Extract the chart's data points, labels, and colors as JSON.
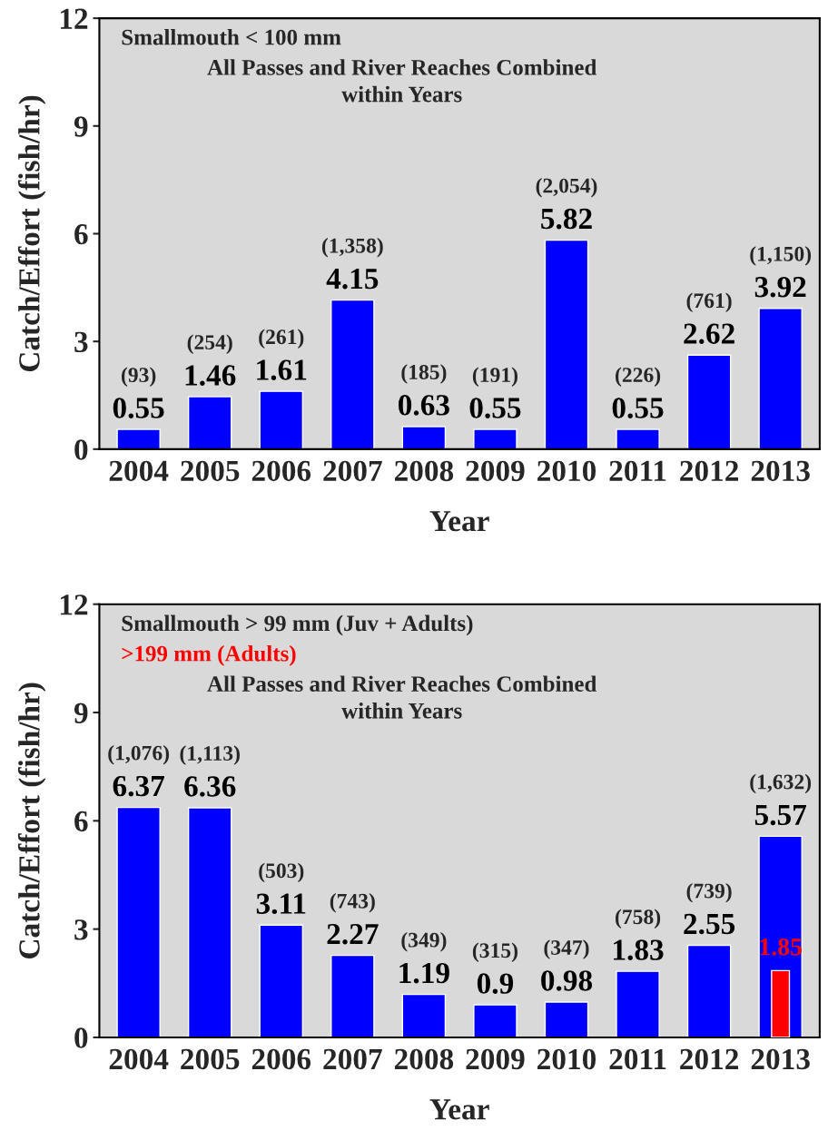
{
  "chart_data": [
    {
      "type": "bar",
      "title": "Smallmouth < 100 mm",
      "subtitle": "All Passes and River Reaches Combined\nwithin Years",
      "xlabel": "Year",
      "ylabel": "Catch/Effort (fish/hr)",
      "categories": [
        "2004",
        "2005",
        "2006",
        "2007",
        "2008",
        "2009",
        "2010",
        "2011",
        "2012",
        "2013"
      ],
      "series": [
        {
          "color": "#0000ff",
          "values": [
            0.55,
            1.46,
            1.61,
            4.15,
            0.63,
            0.55,
            5.82,
            0.55,
            2.62,
            3.92
          ],
          "value_labels": [
            "0.55",
            "1.46",
            "1.61",
            "4.15",
            "0.63",
            "0.55",
            "5.82",
            "0.55",
            "2.62",
            "3.92"
          ]
        }
      ],
      "annotations": [
        {
          "text": "(93)",
          "x": "2004",
          "y": 0.55
        },
        {
          "text": "(254)",
          "x": "2005",
          "y": 1.46
        },
        {
          "text": "(261)",
          "x": "2006",
          "y": 1.61
        },
        {
          "text": "(1,358)",
          "x": "2007",
          "y": 4.15
        },
        {
          "text": "(185)",
          "x": "2008",
          "y": 0.63
        },
        {
          "text": "(191)",
          "x": "2009",
          "y": 0.55
        },
        {
          "text": "(2,054)",
          "x": "2010",
          "y": 5.82
        },
        {
          "text": "(226)",
          "x": "2011",
          "y": 0.55
        },
        {
          "text": "(761)",
          "x": "2012",
          "y": 2.62
        },
        {
          "text": "(1,150)",
          "x": "2013",
          "y": 3.92
        }
      ],
      "ylim": [
        0,
        12
      ],
      "yticks": [
        0,
        3,
        6,
        9,
        12
      ],
      "grid": false
    },
    {
      "type": "bar",
      "title": "Smallmouth > 99 mm (Juv + Adults)",
      "subtitle": "All Passes and River Reaches Combined\nwithin Years",
      "xlabel": "Year",
      "ylabel": "Catch/Effort (fish/hr)",
      "categories": [
        "2004",
        "2005",
        "2006",
        "2007",
        "2008",
        "2009",
        "2010",
        "2011",
        "2012",
        "2013"
      ],
      "series": [
        {
          "color": "#0000ff",
          "values": [
            6.37,
            6.36,
            3.11,
            2.27,
            1.19,
            0.9,
            0.98,
            1.83,
            2.55,
            5.57
          ],
          "value_labels": [
            "6.37",
            "6.36",
            "3.11",
            "2.27",
            "1.19",
            "0.9",
            "0.98",
            "1.83",
            "2.55",
            "5.57"
          ]
        },
        {
          "name": ">199 mm (Adults)",
          "color": "#ff0000",
          "values": [
            null,
            null,
            null,
            null,
            null,
            null,
            null,
            null,
            null,
            1.85
          ],
          "value_labels": [
            null,
            null,
            null,
            null,
            null,
            null,
            null,
            null,
            null,
            "1.85"
          ]
        }
      ],
      "annotations": [
        {
          "text": "(1,076)",
          "x": "2004",
          "y": 6.37
        },
        {
          "text": "(1,113)",
          "x": "2005",
          "y": 6.36
        },
        {
          "text": "(503)",
          "x": "2006",
          "y": 3.11
        },
        {
          "text": "(743)",
          "x": "2007",
          "y": 2.27
        },
        {
          "text": "(349)",
          "x": "2008",
          "y": 1.19
        },
        {
          "text": "(315)",
          "x": "2009",
          "y": 0.9
        },
        {
          "text": "(347)",
          "x": "2010",
          "y": 0.98
        },
        {
          "text": "(758)",
          "x": "2011",
          "y": 1.83
        },
        {
          "text": "(739)",
          "x": "2012",
          "y": 2.55
        },
        {
          "text": "(1,632)",
          "x": "2013",
          "y": 5.57
        }
      ],
      "ylim": [
        0,
        12
      ],
      "yticks": [
        0,
        3,
        6,
        9,
        12
      ],
      "grid": false
    }
  ]
}
